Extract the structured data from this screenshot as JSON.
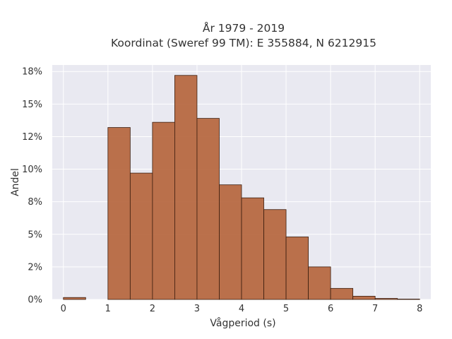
{
  "chart_data": {
    "type": "bar",
    "title_line1": "År 1979 - 2019",
    "title_line2": "Koordinat (Sweref 99 TM): E 355884, N 6212915",
    "xlabel": "Vågperiod (s)",
    "ylabel": "Andel",
    "xlim": [
      -0.25,
      8.25
    ],
    "ylim": [
      0,
      0.18
    ],
    "x_ticks": [
      0,
      1,
      2,
      3,
      4,
      5,
      6,
      7,
      8
    ],
    "x_tick_labels": [
      "0",
      "1",
      "2",
      "3",
      "4",
      "5",
      "6",
      "7",
      "8"
    ],
    "y_ticks": [
      0,
      0.025,
      0.05,
      0.075,
      0.1,
      0.125,
      0.15,
      0.175
    ],
    "y_tick_labels": [
      "0%",
      "2%",
      "5%",
      "8%",
      "10%",
      "12%",
      "15%",
      "18%"
    ],
    "bins": [
      {
        "x0": 0.0,
        "x1": 0.5,
        "value": 0.0015
      },
      {
        "x0": 0.5,
        "x1": 1.0,
        "value": 0.0
      },
      {
        "x0": 1.0,
        "x1": 1.5,
        "value": 0.132
      },
      {
        "x0": 1.5,
        "x1": 2.0,
        "value": 0.097
      },
      {
        "x0": 2.0,
        "x1": 2.5,
        "value": 0.136
      },
      {
        "x0": 2.5,
        "x1": 3.0,
        "value": 0.172
      },
      {
        "x0": 3.0,
        "x1": 3.5,
        "value": 0.139
      },
      {
        "x0": 3.5,
        "x1": 4.0,
        "value": 0.088
      },
      {
        "x0": 4.0,
        "x1": 4.5,
        "value": 0.078
      },
      {
        "x0": 4.5,
        "x1": 5.0,
        "value": 0.069
      },
      {
        "x0": 5.0,
        "x1": 5.5,
        "value": 0.048
      },
      {
        "x0": 5.5,
        "x1": 6.0,
        "value": 0.025
      },
      {
        "x0": 6.0,
        "x1": 6.5,
        "value": 0.0085
      },
      {
        "x0": 6.5,
        "x1": 7.0,
        "value": 0.0025
      },
      {
        "x0": 7.0,
        "x1": 7.5,
        "value": 0.0008
      },
      {
        "x0": 7.5,
        "x1": 8.0,
        "value": 0.0003
      }
    ],
    "grid": true,
    "legend": "none",
    "colors": {
      "bar_fill": "#b5653d",
      "bar_stroke": "#3b1e0f",
      "plot_bg": "#e9e9f1",
      "grid": "#ffffff"
    }
  }
}
